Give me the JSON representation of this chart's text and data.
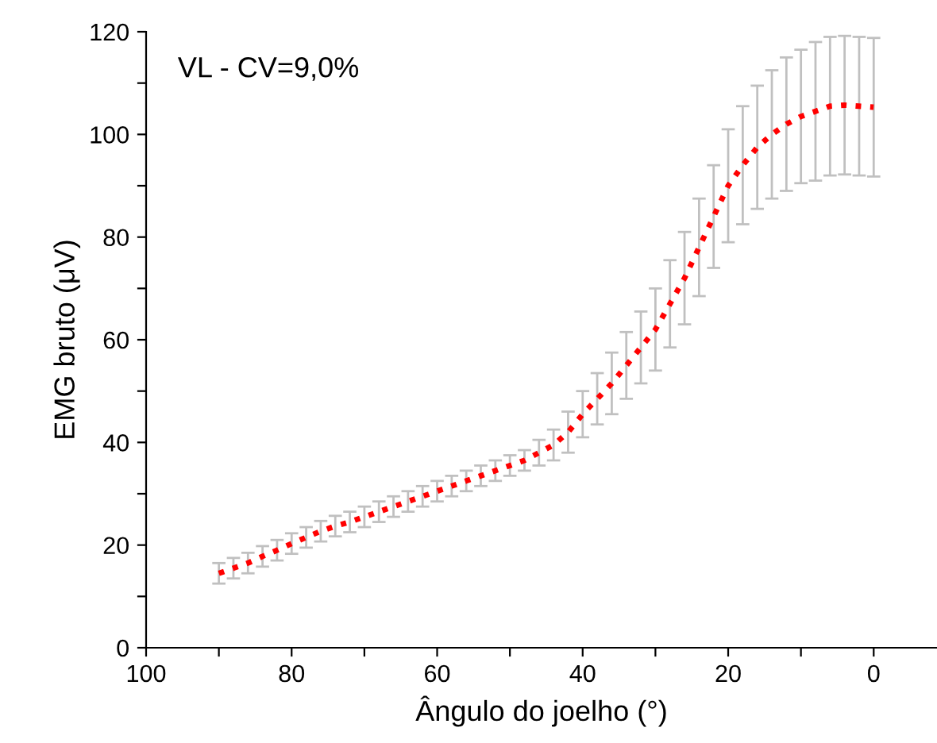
{
  "chart_data": {
    "type": "line",
    "xlabel": "Ângulo do joelho (°)",
    "ylabel": "EMG bruto (μV)",
    "annotations": [
      "VL - CV=9,0%"
    ],
    "x": [
      90,
      88,
      86,
      84,
      82,
      80,
      78,
      76,
      74,
      72,
      70,
      68,
      66,
      64,
      62,
      60,
      58,
      56,
      54,
      52,
      50,
      48,
      46,
      44,
      42,
      40,
      38,
      36,
      34,
      32,
      30,
      28,
      26,
      24,
      22,
      20,
      18,
      16,
      14,
      12,
      10,
      8,
      6,
      4,
      2,
      0
    ],
    "series": [
      {
        "color": "#ff0000",
        "line_style": "dotted",
        "values": [
          14.5,
          15.5,
          16.5,
          17.8,
          19,
          20.3,
          21.5,
          22.7,
          23.7,
          24.5,
          25.5,
          26.5,
          27.5,
          28.5,
          29.5,
          30.5,
          31.5,
          32.5,
          33.5,
          34.5,
          35.5,
          36.5,
          38,
          39.5,
          42,
          45.5,
          48.5,
          51.5,
          55,
          58.5,
          62,
          67,
          72,
          78,
          84,
          90,
          94,
          97.5,
          100,
          102,
          103.5,
          104.5,
          105.5,
          105.7,
          105.5,
          105.3
        ],
        "errors": [
          2,
          2,
          2,
          2,
          2,
          2,
          2,
          2,
          2,
          2,
          2,
          2,
          2,
          2,
          2,
          2,
          2,
          2,
          2,
          2,
          2,
          2,
          2.5,
          3,
          4,
          4.5,
          5,
          6,
          6.5,
          7,
          8,
          8.5,
          9,
          9.5,
          10,
          11,
          11.5,
          12,
          12.5,
          13,
          13,
          13.5,
          13.5,
          13.5,
          13.5,
          13.5
        ]
      }
    ],
    "xlim": [
      100,
      -8.7
    ],
    "ylim": [
      0,
      120
    ],
    "xticks": [
      100,
      {
        "value": 90,
        "label": null
      },
      80,
      {
        "value": 70,
        "label": null
      },
      60,
      {
        "value": 50,
        "label": null
      },
      40,
      {
        "value": 30,
        "label": null
      },
      20,
      {
        "value": 10,
        "label": null
      },
      0
    ],
    "yticks": [
      0,
      {
        "value": 10,
        "label": null
      },
      20,
      {
        "value": 30,
        "label": null
      },
      40,
      {
        "value": 50,
        "label": null
      },
      60,
      {
        "value": 70,
        "label": null
      },
      80,
      {
        "value": 90,
        "label": null
      },
      100,
      {
        "value": 110,
        "label": null
      },
      120
    ],
    "grid": false,
    "legend": false
  }
}
